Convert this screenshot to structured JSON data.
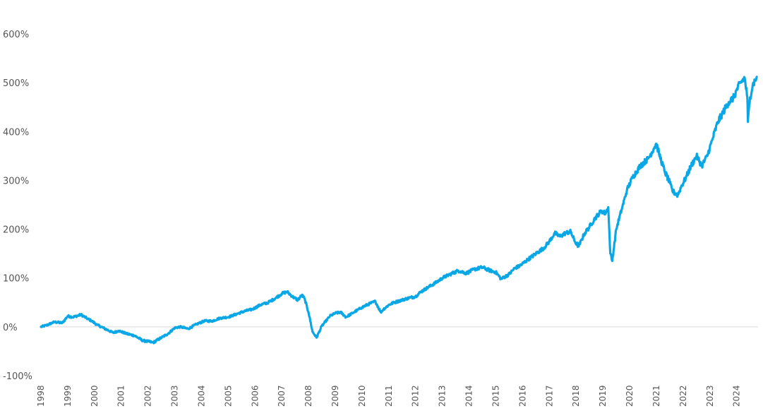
{
  "chart_data": {
    "type": "line",
    "title": "",
    "xlabel": "",
    "ylabel": "",
    "line_color": "#0AA7E6",
    "zero_line_color": "#d9d9d9",
    "grid": false,
    "legend": "none",
    "xlim": [
      1998.0,
      2024.8
    ],
    "ylim": [
      -100,
      600
    ],
    "y_ticks": [
      -100,
      0,
      100,
      200,
      300,
      400,
      500,
      600
    ],
    "y_tick_labels": [
      "-100%",
      "0%",
      "100%",
      "200%",
      "300%",
      "400%",
      "500%",
      "600%"
    ],
    "x_ticks": [
      1998,
      1999,
      2000,
      2001,
      2002,
      2003,
      2004,
      2005,
      2006,
      2007,
      2008,
      2009,
      2010,
      2011,
      2012,
      2013,
      2014,
      2015,
      2016,
      2017,
      2018,
      2019,
      2020,
      2021,
      2022,
      2023,
      2024
    ],
    "x_tick_labels": [
      "1998",
      "1999",
      "2000",
      "2001",
      "2002",
      "2003",
      "2004",
      "2005",
      "2006",
      "2007",
      "2008",
      "2009",
      "2010",
      "2011",
      "2012",
      "2013",
      "2014",
      "2015",
      "2016",
      "2017",
      "2018",
      "2019",
      "2020",
      "2021",
      "2022",
      "2023",
      "2024"
    ],
    "series": [
      {
        "x": [
          1998.0,
          1998.2,
          1998.5,
          1998.8,
          1999.0,
          1999.2,
          1999.5,
          1999.7,
          1999.9,
          2000.1,
          2000.4,
          2000.7,
          2000.9,
          2001.2,
          2001.5,
          2001.8,
          2002.0,
          2002.2,
          2002.5,
          2002.75,
          2003.0,
          2003.2,
          2003.5,
          2003.8,
          2004.1,
          2004.4,
          2004.7,
          2005.0,
          2005.3,
          2005.6,
          2005.9,
          2006.2,
          2006.5,
          2006.8,
          2007.0,
          2007.2,
          2007.4,
          2007.6,
          2007.75,
          2007.85,
          2008.0,
          2008.15,
          2008.3,
          2008.5,
          2008.8,
          2009.0,
          2009.2,
          2009.4,
          2009.7,
          2010.0,
          2010.3,
          2010.5,
          2010.7,
          2010.8,
          2011.0,
          2011.2,
          2011.5,
          2011.8,
          2012.0,
          2012.2,
          2012.5,
          2012.8,
          2013.0,
          2013.3,
          2013.6,
          2013.9,
          2014.2,
          2014.5,
          2014.8,
          2015.0,
          2015.2,
          2015.5,
          2015.7,
          2015.9,
          2016.2,
          2016.5,
          2016.8,
          2017.0,
          2017.2,
          2017.4,
          2017.6,
          2017.8,
          2017.95,
          2018.1,
          2018.3,
          2018.5,
          2018.7,
          2018.95,
          2019.1,
          2019.2,
          2019.28,
          2019.35,
          2019.5,
          2019.7,
          2019.9,
          2020.1,
          2020.4,
          2020.7,
          2020.9,
          2021.0,
          2021.1,
          2021.3,
          2021.5,
          2021.6,
          2021.8,
          2021.95,
          2022.1,
          2022.3,
          2022.5,
          2022.7,
          2022.9,
          2023.1,
          2023.3,
          2023.5,
          2023.7,
          2023.9,
          2024.0,
          2024.15,
          2024.3,
          2024.4,
          2024.42,
          2024.5,
          2024.6,
          2024.75
        ],
        "y": [
          0,
          3,
          10,
          8,
          22,
          20,
          25,
          18,
          12,
          4,
          -4,
          -12,
          -8,
          -14,
          -18,
          -28,
          -30,
          -32,
          -22,
          -14,
          -2,
          0,
          -4,
          5,
          12,
          12,
          18,
          20,
          26,
          32,
          36,
          45,
          50,
          60,
          68,
          72,
          62,
          55,
          65,
          58,
          30,
          -10,
          -22,
          2,
          22,
          28,
          30,
          20,
          30,
          40,
          48,
          52,
          30,
          36,
          45,
          50,
          55,
          60,
          62,
          72,
          82,
          92,
          100,
          108,
          115,
          110,
          118,
          122,
          115,
          112,
          98,
          108,
          120,
          125,
          138,
          150,
          162,
          175,
          192,
          185,
          192,
          195,
          175,
          165,
          190,
          205,
          222,
          238,
          232,
          245,
          150,
          135,
          200,
          240,
          280,
          305,
          330,
          345,
          365,
          375,
          355,
          320,
          295,
          278,
          270,
          290,
          305,
          330,
          350,
          330,
          350,
          385,
          420,
          440,
          460,
          470,
          485,
          500,
          510,
          470,
          420,
          470,
          495,
          512
        ]
      }
    ]
  }
}
